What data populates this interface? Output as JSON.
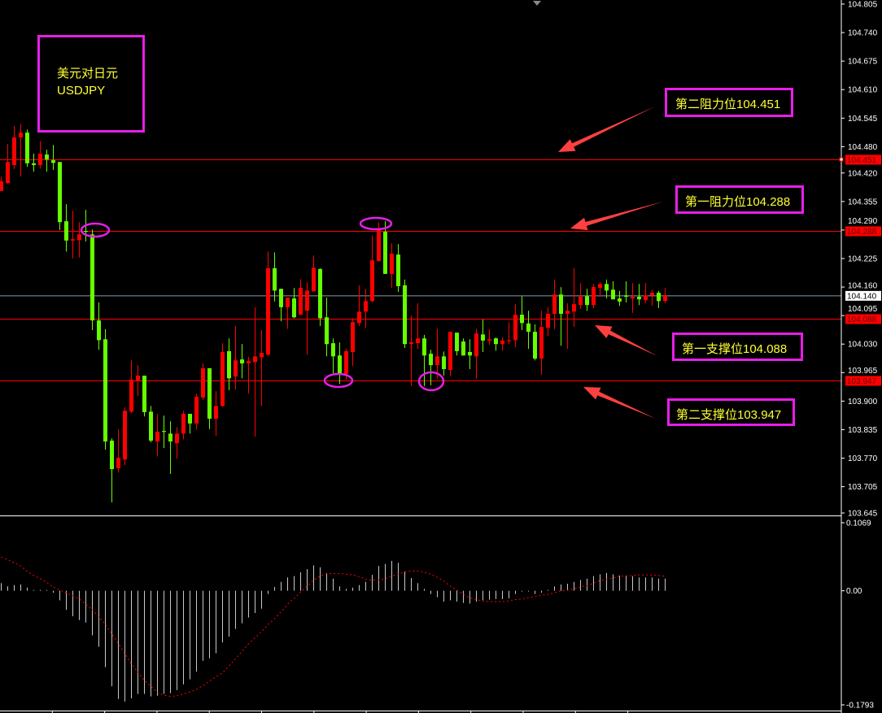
{
  "chart_data": {
    "type": "candlestick",
    "price_axis": {
      "ylim": [
        103.645,
        104.805
      ],
      "ticks": [
        "104.805",
        "104.740",
        "104.675",
        "104.610",
        "104.545",
        "104.480",
        "104.420",
        "104.355",
        "104.290",
        "104.225",
        "104.160",
        "104.095",
        "104.030",
        "103.965",
        "103.900",
        "103.835",
        "103.770",
        "103.705",
        "103.645"
      ]
    },
    "current_price": {
      "label": "104.140",
      "value": 104.14
    },
    "levels": [
      {
        "label": "104.451",
        "value": 104.451
      },
      {
        "label": "104.288",
        "value": 104.288
      },
      {
        "label": "104.088",
        "value": 104.088
      },
      {
        "label": "103.947",
        "value": 103.947
      }
    ],
    "candles_ohlc": [
      [
        104.379,
        104.412,
        104.379,
        104.401
      ],
      [
        104.397,
        104.486,
        104.395,
        104.445
      ],
      [
        104.438,
        104.527,
        104.429,
        104.501
      ],
      [
        104.501,
        104.532,
        104.412,
        104.512
      ],
      [
        104.512,
        104.519,
        104.434,
        104.442
      ],
      [
        104.442,
        104.464,
        104.423,
        104.438
      ],
      [
        104.438,
        104.492,
        104.43,
        104.464
      ],
      [
        104.462,
        104.473,
        104.423,
        104.451
      ],
      [
        104.449,
        104.484,
        104.427,
        104.443
      ],
      [
        104.445,
        104.445,
        104.29,
        104.308
      ],
      [
        104.31,
        104.349,
        104.241,
        104.266
      ],
      [
        104.266,
        104.334,
        104.225,
        104.269
      ],
      [
        104.267,
        104.308,
        104.227,
        104.28
      ],
      [
        104.288,
        104.336,
        104.264,
        104.286
      ],
      [
        104.28,
        104.291,
        104.062,
        104.084
      ],
      [
        104.084,
        104.125,
        104.017,
        104.039
      ],
      [
        104.041,
        104.064,
        103.789,
        103.808
      ],
      [
        103.81,
        103.815,
        103.669,
        103.745
      ],
      [
        103.747,
        103.836,
        103.737,
        103.771
      ],
      [
        103.767,
        103.886,
        103.754,
        103.878
      ],
      [
        103.876,
        103.993,
        103.873,
        103.949
      ],
      [
        103.947,
        103.982,
        103.912,
        103.958
      ],
      [
        103.958,
        103.958,
        103.865,
        103.875
      ],
      [
        103.876,
        103.889,
        103.806,
        103.81
      ],
      [
        103.808,
        103.871,
        103.774,
        103.83
      ],
      [
        103.832,
        103.867,
        103.793,
        103.83
      ],
      [
        103.826,
        103.854,
        103.734,
        103.808
      ],
      [
        103.804,
        103.841,
        103.769,
        103.826
      ],
      [
        103.826,
        103.878,
        103.813,
        103.871
      ],
      [
        103.871,
        103.871,
        103.826,
        103.849
      ],
      [
        103.849,
        103.917,
        103.836,
        103.91
      ],
      [
        103.908,
        103.986,
        103.902,
        103.975
      ],
      [
        103.975,
        103.975,
        103.836,
        103.86
      ],
      [
        103.86,
        103.923,
        103.821,
        103.889
      ],
      [
        103.889,
        104.032,
        103.887,
        104.012
      ],
      [
        104.014,
        104.043,
        103.925,
        103.952
      ],
      [
        103.956,
        104.071,
        103.927,
        103.993
      ],
      [
        103.995,
        104.03,
        103.952,
        103.986
      ],
      [
        103.986,
        104.001,
        103.917,
        103.991
      ],
      [
        103.989,
        104.114,
        103.819,
        104.002
      ],
      [
        104.0,
        104.062,
        103.889,
        104.01
      ],
      [
        104.006,
        104.241,
        104.002,
        104.203
      ],
      [
        104.203,
        104.239,
        104.127,
        104.152
      ],
      [
        104.156,
        104.156,
        104.082,
        104.114
      ],
      [
        104.114,
        104.136,
        104.065,
        104.136
      ],
      [
        104.134,
        104.158,
        104.089,
        104.091
      ],
      [
        104.097,
        104.178,
        104.097,
        104.158
      ],
      [
        104.106,
        104.171,
        104.006,
        104.152
      ],
      [
        104.15,
        104.232,
        104.15,
        104.204
      ],
      [
        104.201,
        104.203,
        104.071,
        104.089
      ],
      [
        104.091,
        104.136,
        104.002,
        104.03
      ],
      [
        104.032,
        104.043,
        103.963,
        104.002
      ],
      [
        104.004,
        104.034,
        103.939,
        103.962
      ],
      [
        103.962,
        104.019,
        103.949,
        104.014
      ],
      [
        104.012,
        104.089,
        103.98,
        104.08
      ],
      [
        104.078,
        104.164,
        104.071,
        104.104
      ],
      [
        104.104,
        104.156,
        104.067,
        104.128
      ],
      [
        104.128,
        104.278,
        104.125,
        104.221
      ],
      [
        104.219,
        104.308,
        104.219,
        104.29
      ],
      [
        104.286,
        104.31,
        104.19,
        104.19
      ],
      [
        104.19,
        104.26,
        104.158,
        104.236
      ],
      [
        104.234,
        104.258,
        104.149,
        104.162
      ],
      [
        104.164,
        104.177,
        104.021,
        104.03
      ],
      [
        104.03,
        104.095,
        103.934,
        104.034
      ],
      [
        104.032,
        104.123,
        104.019,
        104.043
      ],
      [
        104.043,
        104.051,
        103.934,
        104.004
      ],
      [
        104.008,
        104.017,
        103.936,
        103.982
      ],
      [
        103.982,
        104.065,
        103.951,
        104.002
      ],
      [
        104.002,
        104.013,
        103.958,
        103.973
      ],
      [
        103.971,
        104.058,
        103.956,
        104.058
      ],
      [
        104.056,
        104.056,
        104.004,
        104.014
      ],
      [
        104.036,
        104.043,
        104.004,
        104.004
      ],
      [
        104.012,
        104.041,
        103.973,
        104.004
      ],
      [
        104.002,
        104.065,
        103.951,
        104.054
      ],
      [
        104.052,
        104.086,
        104.012,
        104.038
      ],
      [
        104.038,
        104.064,
        104.028,
        104.041
      ],
      [
        104.043,
        104.045,
        104.015,
        104.03
      ],
      [
        104.03,
        104.045,
        104.015,
        104.038
      ],
      [
        104.038,
        104.08,
        104.03,
        104.039
      ],
      [
        104.039,
        104.121,
        104.023,
        104.097
      ],
      [
        104.097,
        104.139,
        104.062,
        104.078
      ],
      [
        104.077,
        104.106,
        104.019,
        104.058
      ],
      [
        104.058,
        104.075,
        103.993,
        103.997
      ],
      [
        103.997,
        104.106,
        103.96,
        104.069
      ],
      [
        104.067,
        104.114,
        104.049,
        104.099
      ],
      [
        104.099,
        104.177,
        104.064,
        104.143
      ],
      [
        104.143,
        104.16,
        104.026,
        104.099
      ],
      [
        104.099,
        104.123,
        104.019,
        104.106
      ],
      [
        104.104,
        104.203,
        104.069,
        104.121
      ],
      [
        104.119,
        104.169,
        104.11,
        104.138
      ],
      [
        104.139,
        104.156,
        104.106,
        104.119
      ],
      [
        104.119,
        104.167,
        104.112,
        104.16
      ],
      [
        104.158,
        104.171,
        104.138,
        104.167
      ],
      [
        104.167,
        104.177,
        104.134,
        104.152
      ],
      [
        104.154,
        104.173,
        104.132,
        104.132
      ],
      [
        104.134,
        104.151,
        104.117,
        104.127
      ],
      [
        104.141,
        104.173,
        104.125,
        104.138
      ],
      [
        104.134,
        104.169,
        104.101,
        104.138
      ],
      [
        104.138,
        104.167,
        104.119,
        104.132
      ],
      [
        104.13,
        104.169,
        104.123,
        104.141
      ],
      [
        104.141,
        104.154,
        104.117,
        104.147
      ],
      [
        104.147,
        104.151,
        104.112,
        104.128
      ],
      [
        104.128,
        104.158,
        104.123,
        104.14
      ]
    ],
    "macd": {
      "ylim": [
        -0.1793,
        0.1069
      ],
      "ticks": [
        "0.1069",
        "0.00",
        "-0.1793"
      ],
      "histogram": [
        0.012,
        0.007,
        0.009,
        0.01,
        0.005,
        0.001,
        0,
        0.001,
        -0.003,
        -0.015,
        -0.03,
        -0.04,
        -0.046,
        -0.05,
        -0.07,
        -0.088,
        -0.12,
        -0.15,
        -0.17,
        -0.174,
        -0.169,
        -0.162,
        -0.162,
        -0.166,
        -0.165,
        -0.162,
        -0.161,
        -0.156,
        -0.147,
        -0.139,
        -0.127,
        -0.11,
        -0.106,
        -0.098,
        -0.081,
        -0.072,
        -0.06,
        -0.051,
        -0.042,
        -0.035,
        -0.028,
        -0.005,
        0.006,
        0.014,
        0.021,
        0.023,
        0.029,
        0.034,
        0.04,
        0.037,
        0.028,
        0.019,
        0.007,
        0.003,
        0.005,
        0.009,
        0.014,
        0.025,
        0.039,
        0.042,
        0.047,
        0.044,
        0.03,
        0.02,
        0.012,
        0.003,
        -0.005,
        -0.01,
        -0.017,
        -0.015,
        -0.017,
        -0.019,
        -0.02,
        -0.017,
        -0.015,
        -0.014,
        -0.013,
        -0.013,
        -0.012,
        -0.005,
        -0.001,
        -0.001,
        -0.005,
        -0.003,
        0,
        0.007,
        0.01,
        0.011,
        0.014,
        0.017,
        0.019,
        0.023,
        0.026,
        0.028,
        0.026,
        0.024,
        0.024,
        0.023,
        0.021,
        0.021,
        0.021,
        0.019,
        0.019
      ],
      "signal": [
        0.053,
        0.049,
        0.044,
        0.039,
        0.03,
        0.024,
        0.019,
        0.013,
        0.006,
        0.001,
        -0.003,
        -0.008,
        -0.013,
        -0.021,
        -0.03,
        -0.041,
        -0.053,
        -0.068,
        -0.083,
        -0.099,
        -0.115,
        -0.128,
        -0.141,
        -0.15,
        -0.16,
        -0.164,
        -0.166,
        -0.165,
        -0.162,
        -0.159,
        -0.155,
        -0.149,
        -0.142,
        -0.135,
        -0.129,
        -0.118,
        -0.107,
        -0.095,
        -0.083,
        -0.074,
        -0.064,
        -0.053,
        -0.044,
        -0.033,
        -0.021,
        -0.012,
        -0.002,
        0.007,
        0.017,
        0.023,
        0.027,
        0.027,
        0.027,
        0.026,
        0.025,
        0.022,
        0.018,
        0.017,
        0.017,
        0.019,
        0.023,
        0.026,
        0.03,
        0.031,
        0.031,
        0.029,
        0.026,
        0.021,
        0.015,
        0.007,
        0.001,
        -0.006,
        -0.011,
        -0.014,
        -0.016,
        -0.017,
        -0.017,
        -0.017,
        -0.016,
        -0.014,
        -0.013,
        -0.011,
        -0.009,
        -0.007,
        -0.006,
        -0.003,
        0.0,
        0.001,
        0.003,
        0.006,
        0.008,
        0.012,
        0.016,
        0.018,
        0.02,
        0.023,
        0.023,
        0.024,
        0.025,
        0.025,
        0.025,
        0.024,
        0.023
      ]
    }
  },
  "colors": {
    "up_candle": "#ff0000",
    "down_candle": "#66ff00",
    "level_line": "#ff0000",
    "current_price_line": "#8899aa",
    "annotation_border": "#e81ee8",
    "annotation_text": "#ffff33",
    "arrow": "#ff4040",
    "macd_histogram": "#c8c8c8",
    "macd_signal": "#ff0000"
  },
  "title_box": {
    "line1": "美元对日元",
    "line2": "USDJPY"
  },
  "annotations": {
    "resistance2": "第二阻力位104.451",
    "resistance1": "第一阻力位104.288",
    "support1": "第一支撑位104.088",
    "support2": "第二支撑位103.947"
  }
}
